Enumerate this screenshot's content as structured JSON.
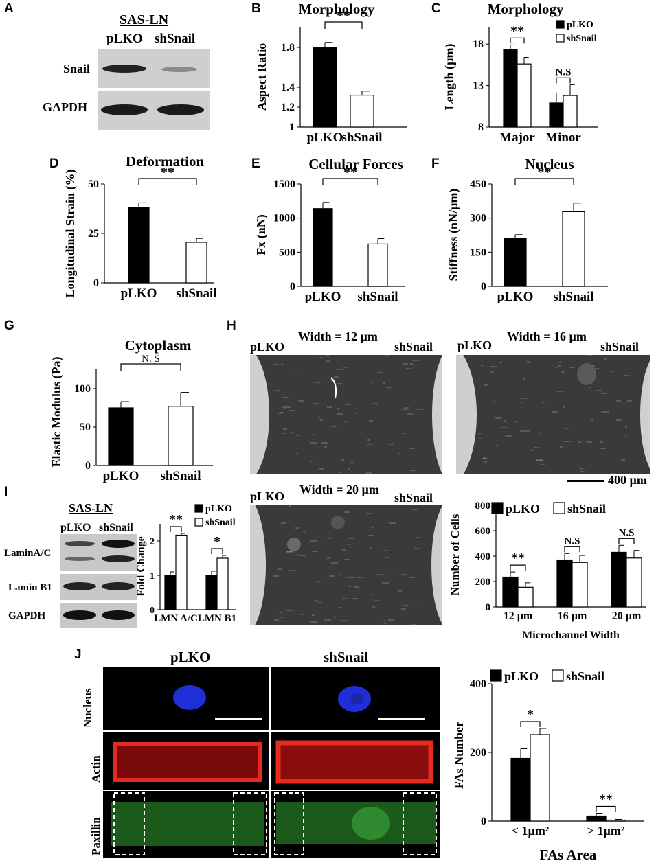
{
  "panels": {
    "A": {
      "letter": "A",
      "title": "SAS-LN",
      "lanes": [
        "pLKO",
        "shSnail"
      ],
      "rows": [
        "Snail",
        "GAPDH"
      ]
    },
    "B": {
      "letter": "B",
      "title": "Morphology"
    },
    "C": {
      "letter": "C",
      "title": "Morphology"
    },
    "D": {
      "letter": "D",
      "title": "Deformation"
    },
    "E": {
      "letter": "E",
      "title": "Cellular Forces"
    },
    "F": {
      "letter": "F",
      "title": "Nucleus"
    },
    "G": {
      "letter": "G",
      "title": "Cytoplasm"
    },
    "H": {
      "letter": "H",
      "labels": {
        "left": "pLKO",
        "right": "shSnail",
        "w12": "Width = 12 µm",
        "w16": "Width = 16 µm",
        "w20": "Width = 20 µm",
        "scale": "400 µm"
      }
    },
    "I": {
      "letter": "I",
      "title": "SAS-LN",
      "lanes": [
        "pLKO",
        "shSnail"
      ],
      "rows": [
        "LaminA/C",
        "Lamin B1",
        "GAPDH"
      ]
    },
    "J": {
      "letter": "J",
      "columns": [
        "pLKO",
        "shSnail"
      ],
      "rows": [
        "Nucleus",
        "Actin",
        "Paxillin"
      ]
    }
  },
  "chart_data": [
    {
      "id": "B",
      "type": "bar",
      "title": "Morphology",
      "ylabel": "Aspect Ratio",
      "categories": [
        "pLKO",
        "shSnail"
      ],
      "values": [
        1.8,
        1.32
      ],
      "errors": [
        0.05,
        0.04
      ],
      "ylim": [
        1,
        2.0
      ],
      "yticks": [
        "1",
        "1.2",
        "1.4",
        "1.8"
      ],
      "sig": [
        "**"
      ],
      "colors": [
        "#000000",
        "#ffffff"
      ]
    },
    {
      "id": "C",
      "type": "bar",
      "title": "Morphology",
      "ylabel": "Length (µm)",
      "categories": [
        "Major",
        "Minor"
      ],
      "series": [
        {
          "name": "pLKO",
          "values": [
            17.3,
            10.9
          ],
          "errors": [
            0.6,
            1.2
          ]
        },
        {
          "name": "shSnail",
          "values": [
            15.6,
            11.8
          ],
          "errors": [
            0.8,
            1.3
          ]
        }
      ],
      "ylim": [
        8,
        20
      ],
      "yticks": [
        "8",
        "13",
        "18"
      ],
      "sig": [
        "**",
        "N.S"
      ]
    },
    {
      "id": "D",
      "type": "bar",
      "title": "Deformation",
      "ylabel": "Longitudinal Strain (%)",
      "categories": [
        "pLKO",
        "shSnail"
      ],
      "values": [
        38,
        20.5
      ],
      "errors": [
        2.5,
        2
      ],
      "ylim": [
        0,
        50
      ],
      "yticks": [
        "0",
        "25",
        "50"
      ],
      "sig": [
        "**"
      ]
    },
    {
      "id": "E",
      "type": "bar",
      "title": "Cellular Forces",
      "ylabel": "Fx (nN)",
      "categories": [
        "pLKO",
        "shSnail"
      ],
      "values": [
        1140,
        620
      ],
      "errors": [
        90,
        80
      ],
      "ylim": [
        0,
        1500
      ],
      "yticks": [
        "0",
        "500",
        "1000",
        "1500"
      ],
      "sig": [
        "**"
      ]
    },
    {
      "id": "F",
      "type": "bar",
      "title": "Nucleus",
      "ylabel": "Stiffness (nN/µm)",
      "categories": [
        "pLKO",
        "shSnail"
      ],
      "values": [
        212,
        328
      ],
      "errors": [
        15,
        38
      ],
      "ylim": [
        0,
        450
      ],
      "yticks": [
        "0",
        "150",
        "300",
        "450"
      ],
      "sig": [
        "**"
      ]
    },
    {
      "id": "G",
      "type": "bar",
      "title": "Cytoplasm",
      "ylabel": "Elastic Modulus (Pa)",
      "categories": [
        "pLKO",
        "shSnail"
      ],
      "values": [
        75,
        77
      ],
      "errors": [
        8,
        18
      ],
      "ylim": [
        0,
        125
      ],
      "yticks": [
        "0",
        "50",
        "100"
      ],
      "sig": [
        "N. S"
      ]
    },
    {
      "id": "I",
      "type": "bar",
      "ylabel": "Fold Change",
      "categories": [
        "LMN A/C",
        "LMN B1"
      ],
      "series": [
        {
          "name": "pLKO",
          "values": [
            1.0,
            1.0
          ],
          "errors": [
            0.1,
            0.12
          ]
        },
        {
          "name": "shSnail",
          "values": [
            2.17,
            1.5
          ],
          "errors": [
            0.05,
            0.08
          ]
        }
      ],
      "ylim": [
        0,
        2.5
      ],
      "yticks": [
        "0",
        "1",
        "2"
      ],
      "sig": [
        "**",
        "*"
      ]
    },
    {
      "id": "H2",
      "type": "bar",
      "ylabel": "Number of Cells",
      "xlabel": "Microchannel Width",
      "categories": [
        "12 µm",
        "16 µm",
        "20 µm"
      ],
      "series": [
        {
          "name": "pLKO",
          "values": [
            235,
            370,
            430
          ],
          "errors": [
            40,
            50,
            55
          ]
        },
        {
          "name": "shSnail",
          "values": [
            155,
            350,
            385
          ],
          "errors": [
            35,
            55,
            60
          ]
        }
      ],
      "ylim": [
        0,
        800
      ],
      "yticks": [
        "0",
        "200",
        "400",
        "600",
        "800"
      ],
      "sig": [
        "**",
        "N.S",
        "N.S"
      ]
    },
    {
      "id": "J2",
      "type": "bar",
      "ylabel": "FAs Number",
      "xlabel": "FAs Area",
      "categories": [
        "< 1µm²",
        "> 1µm²"
      ],
      "series": [
        {
          "name": "pLKO",
          "values": [
            183,
            15
          ],
          "errors": [
            28,
            8
          ]
        },
        {
          "name": "shSnail",
          "values": [
            252,
            3
          ],
          "errors": [
            18,
            2
          ]
        }
      ],
      "ylim": [
        0,
        400
      ],
      "yticks": [
        "0",
        "200",
        "400"
      ],
      "sig": [
        "*",
        "**"
      ]
    }
  ]
}
